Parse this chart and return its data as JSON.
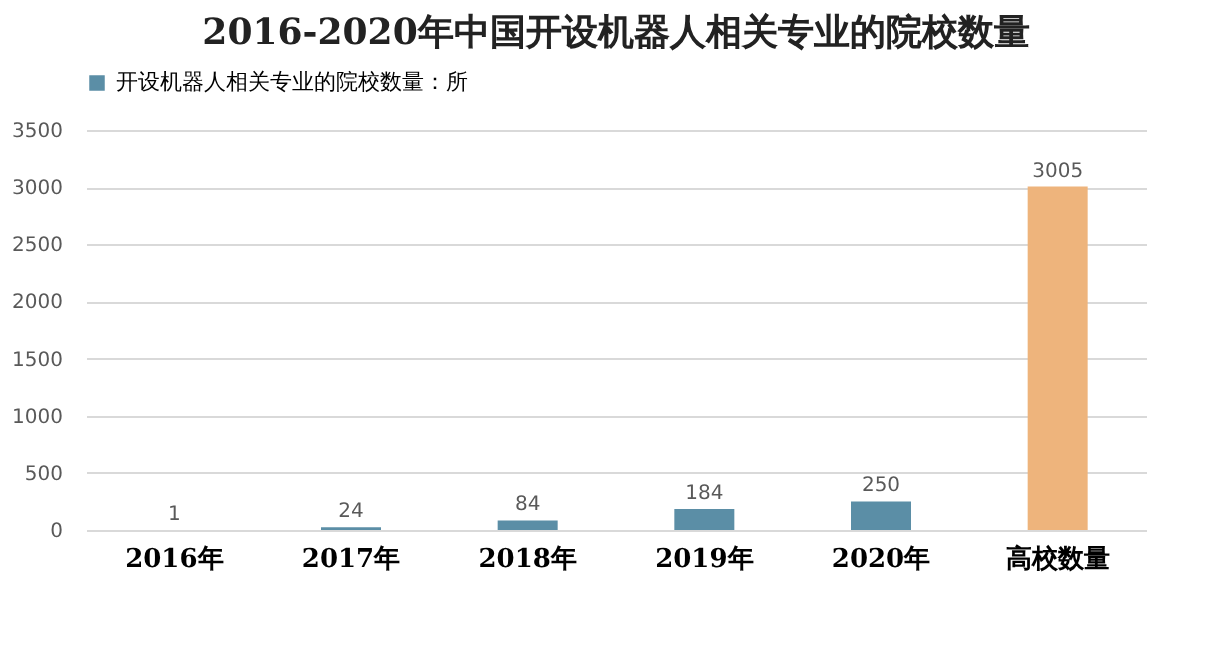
{
  "chart_data": {
    "type": "bar",
    "title": "2016-2020年中国开设机器人相关专业的院校数量",
    "categories": [
      "2016年",
      "2017年",
      "2018年",
      "2019年",
      "2020年",
      "高校数量"
    ],
    "series": [
      {
        "name": "开设机器人相关专业的院校数量：所",
        "color": "#5b8ea6",
        "colors": [
          "#5b8ea6",
          "#5b8ea6",
          "#5b8ea6",
          "#5b8ea6",
          "#5b8ea6",
          "#eeb47c"
        ],
        "values": [
          1,
          24,
          84,
          184,
          250,
          3005
        ]
      }
    ],
    "ylim": [
      0,
      3500
    ],
    "yticks": [
      0,
      500,
      1000,
      1500,
      2000,
      2500,
      3000,
      3500
    ],
    "grid": "y",
    "legend": "top",
    "data_labels": true
  }
}
